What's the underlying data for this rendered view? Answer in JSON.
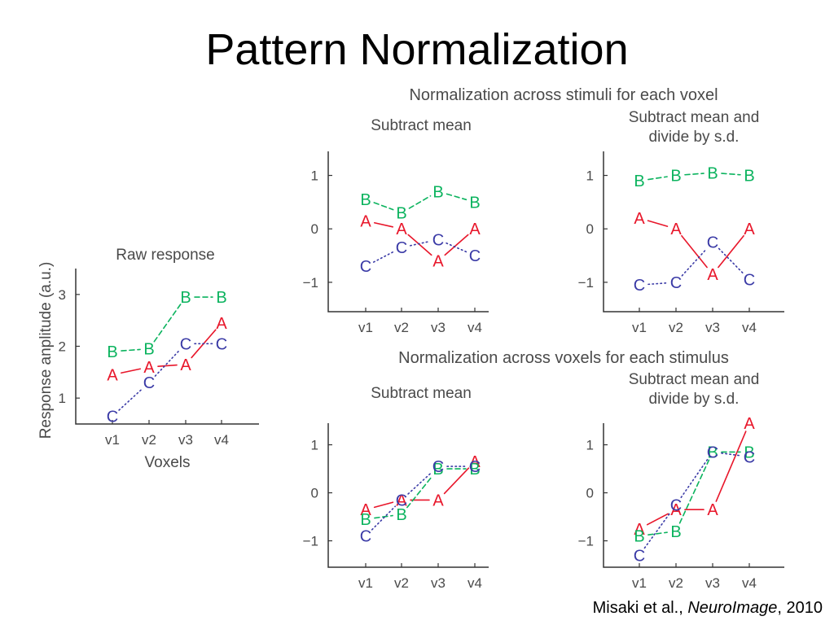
{
  "slide": {
    "title": "Pattern Normalization",
    "citation": {
      "authors": "Misaki et al., ",
      "journal": "NeuroImage",
      "year": ", 2010"
    }
  },
  "figure": {
    "header_top": "Normalization across stimuli for each voxel",
    "header_bottom": "Normalization across voxels for each stimulus"
  },
  "colors": {
    "A": "#e8162a",
    "B": "#0bb35e",
    "C": "#3a3aa6",
    "axis": "#333333",
    "text": "#4a4a4a"
  },
  "chart_data": [
    {
      "id": "raw",
      "type": "line",
      "title": [
        "Raw response"
      ],
      "xlabel": "Voxels",
      "ylabel": "Response anplitude (a.u.)",
      "categories": [
        "v1",
        "v2",
        "v3",
        "v4"
      ],
      "yticks": [
        1,
        2,
        3
      ],
      "ylim": [
        0.5,
        3.5
      ],
      "series": [
        {
          "name": "A",
          "values": [
            1.45,
            1.6,
            1.65,
            2.45
          ],
          "style": "solid"
        },
        {
          "name": "B",
          "values": [
            1.9,
            1.95,
            2.95,
            2.95
          ],
          "style": "dashed"
        },
        {
          "name": "C",
          "values": [
            0.65,
            1.3,
            2.05,
            2.05
          ],
          "style": "dotted"
        }
      ]
    },
    {
      "id": "stim-mean",
      "type": "line",
      "title": [
        "Subtract mean"
      ],
      "xlabel": "",
      "ylabel": "",
      "categories": [
        "v1",
        "v2",
        "v3",
        "v4"
      ],
      "yticks": [
        -1,
        0,
        1
      ],
      "ylim": [
        -1.55,
        1.45
      ],
      "series": [
        {
          "name": "A",
          "values": [
            0.15,
            0.0,
            -0.6,
            0.0
          ],
          "style": "solid"
        },
        {
          "name": "B",
          "values": [
            0.55,
            0.3,
            0.7,
            0.5
          ],
          "style": "dashed"
        },
        {
          "name": "C",
          "values": [
            -0.7,
            -0.35,
            -0.2,
            -0.5
          ],
          "style": "dotted"
        }
      ]
    },
    {
      "id": "stim-sd",
      "type": "line",
      "title": [
        "Subtract mean and",
        "divide by s.d."
      ],
      "xlabel": "",
      "ylabel": "",
      "categories": [
        "v1",
        "v2",
        "v3",
        "v4"
      ],
      "yticks": [
        -1,
        0,
        1
      ],
      "ylim": [
        -1.55,
        1.45
      ],
      "series": [
        {
          "name": "A",
          "values": [
            0.2,
            0.0,
            -0.85,
            0.0
          ],
          "style": "solid"
        },
        {
          "name": "B",
          "values": [
            0.9,
            1.0,
            1.05,
            1.0
          ],
          "style": "dashed"
        },
        {
          "name": "C",
          "values": [
            -1.05,
            -1.0,
            -0.25,
            -0.95
          ],
          "style": "dotted"
        }
      ]
    },
    {
      "id": "vox-mean",
      "type": "line",
      "title": [
        "Subtract mean"
      ],
      "xlabel": "",
      "ylabel": "",
      "categories": [
        "v1",
        "v2",
        "v3",
        "v4"
      ],
      "yticks": [
        -1,
        0,
        1
      ],
      "ylim": [
        -1.55,
        1.45
      ],
      "series": [
        {
          "name": "A",
          "values": [
            -0.35,
            -0.15,
            -0.15,
            0.65
          ],
          "style": "solid"
        },
        {
          "name": "B",
          "values": [
            -0.55,
            -0.45,
            0.5,
            0.5
          ],
          "style": "dashed"
        },
        {
          "name": "C",
          "values": [
            -0.9,
            -0.15,
            0.55,
            0.55
          ],
          "style": "dotted"
        }
      ]
    },
    {
      "id": "vox-sd",
      "type": "line",
      "title": [
        "Subtract mean and",
        "divide by s.d."
      ],
      "xlabel": "",
      "ylabel": "",
      "categories": [
        "v1",
        "v2",
        "v3",
        "v4"
      ],
      "yticks": [
        -1,
        0,
        1
      ],
      "ylim": [
        -1.55,
        1.45
      ],
      "series": [
        {
          "name": "A",
          "values": [
            -0.75,
            -0.35,
            -0.35,
            1.45
          ],
          "style": "solid"
        },
        {
          "name": "B",
          "values": [
            -0.9,
            -0.8,
            0.85,
            0.85
          ],
          "style": "dashed"
        },
        {
          "name": "C",
          "values": [
            -1.3,
            -0.25,
            0.85,
            0.75
          ],
          "style": "dotted"
        }
      ]
    }
  ]
}
